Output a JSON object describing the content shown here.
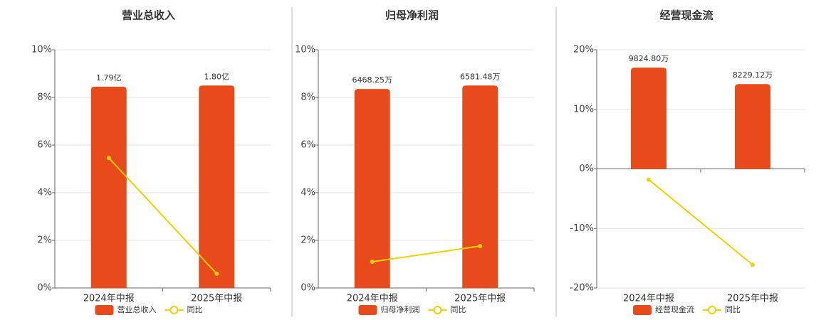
{
  "chart_data": [
    {
      "type": "bar",
      "title": "营业总收入",
      "categories": [
        "2024年中报",
        "2025年中报"
      ],
      "series": [
        {
          "name": "营业总收入",
          "type": "bar",
          "color": "#e84a1b",
          "values": [
            1.79,
            1.8
          ],
          "value_labels": [
            "1.79亿",
            "1.80亿"
          ]
        },
        {
          "name": "同比",
          "type": "line",
          "color": "#f2d000",
          "values": [
            5.46,
            0.6
          ]
        }
      ],
      "ylim": [
        0,
        10
      ],
      "yticks": [
        {
          "value": 0,
          "label": "0%"
        },
        {
          "value": 2,
          "label": "2%"
        },
        {
          "value": 4,
          "label": "4%"
        },
        {
          "value": 6,
          "label": "6%"
        },
        {
          "value": 8,
          "label": "8%"
        },
        {
          "value": 10,
          "label": "10%"
        }
      ]
    },
    {
      "type": "bar",
      "title": "归母净利润",
      "categories": [
        "2024年中报",
        "2025年中报"
      ],
      "series": [
        {
          "name": "归母净利润",
          "type": "bar",
          "color": "#e84a1b",
          "values": [
            6468.25,
            6581.48
          ],
          "value_labels": [
            "6468.25万",
            "6581.48万"
          ]
        },
        {
          "name": "同比",
          "type": "line",
          "color": "#f2d000",
          "values": [
            1.1,
            1.76
          ]
        }
      ],
      "ylim": [
        0,
        10
      ],
      "yticks": [
        {
          "value": 0,
          "label": "0%"
        },
        {
          "value": 2,
          "label": "2%"
        },
        {
          "value": 4,
          "label": "4%"
        },
        {
          "value": 6,
          "label": "6%"
        },
        {
          "value": 8,
          "label": "8%"
        },
        {
          "value": 10,
          "label": "10%"
        }
      ]
    },
    {
      "type": "bar",
      "title": "经营现金流",
      "categories": [
        "2024年中报",
        "2025年中报"
      ],
      "series": [
        {
          "name": "经营现金流",
          "type": "bar",
          "color": "#e84a1b",
          "values": [
            9824.8,
            8229.12
          ],
          "value_labels": [
            "9824.80万",
            "8229.12万"
          ]
        },
        {
          "name": "同比",
          "type": "line",
          "color": "#f2d000",
          "values": [
            -1.8,
            -16.1
          ]
        }
      ],
      "ylim": [
        -20,
        20
      ],
      "yticks": [
        {
          "value": -20,
          "label": "-20%"
        },
        {
          "value": -10,
          "label": "-10%"
        },
        {
          "value": 0,
          "label": "0%"
        },
        {
          "value": 10,
          "label": "10%"
        },
        {
          "value": 20,
          "label": "20%"
        }
      ]
    }
  ]
}
